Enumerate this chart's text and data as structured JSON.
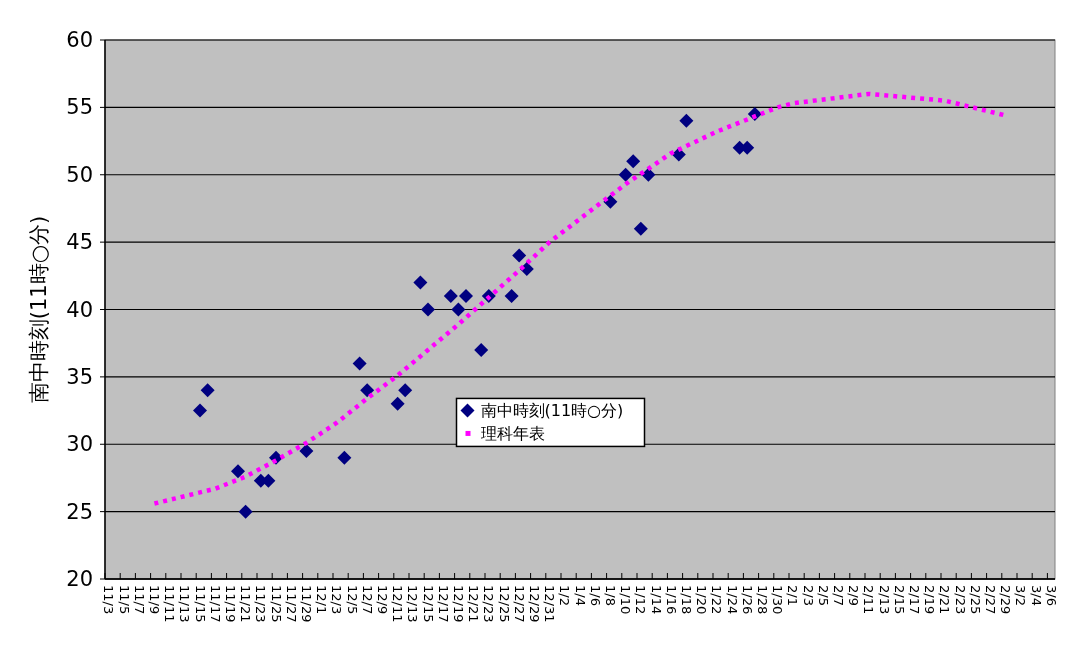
{
  "chart_data": {
    "type": "scatter",
    "ylabel": "南中時刻(11時○分)",
    "ylim": [
      20,
      60
    ],
    "yticks": [
      20,
      25,
      30,
      35,
      40,
      45,
      50,
      55,
      60
    ],
    "categories": [
      "11/3",
      null,
      "11/5",
      null,
      "11/7",
      null,
      "11/9",
      null,
      "11/11",
      null,
      "11/13",
      null,
      "11/15",
      null,
      "11/17",
      null,
      "11/19",
      null,
      "11/21",
      null,
      "11/23",
      null,
      "11/25",
      null,
      "11/27",
      null,
      "11/29",
      null,
      "12/1",
      null,
      "12/3",
      null,
      "12/5",
      null,
      "12/7",
      null,
      "12/9",
      null,
      "12/11",
      null,
      "12/13",
      null,
      "12/15",
      null,
      "12/17",
      null,
      "12/19",
      null,
      "12/21",
      null,
      "12/23",
      null,
      "12/25",
      null,
      "12/27",
      null,
      "12/29",
      null,
      "12/31",
      null,
      "1/2",
      null,
      "1/4",
      null,
      "1/6",
      null,
      "1/8",
      null,
      "1/10",
      null,
      "1/12",
      null,
      "1/14",
      null,
      "1/16",
      null,
      "1/18",
      null,
      "1/20",
      null,
      "1/22",
      null,
      "1/24",
      null,
      "1/26",
      null,
      "1/28",
      null,
      "1/30",
      null,
      "2/1",
      null,
      "2/3",
      null,
      "2/5",
      null,
      "2/7",
      null,
      "2/9",
      null,
      "2/11",
      null,
      "2/13",
      null,
      "2/15",
      null,
      "2/17",
      null,
      "2/19",
      null,
      "2/21",
      null,
      "2/23",
      null,
      "2/25",
      null,
      "2/27",
      null,
      "2/29",
      null,
      "3/2",
      null,
      "3/4",
      null,
      "3/6"
    ],
    "grid": "y",
    "legend": "center",
    "series": [
      {
        "name": "南中時刻(11時○分)",
        "color": "#000080",
        "marker": "diamond",
        "values": [
          null,
          null,
          null,
          null,
          null,
          null,
          null,
          null,
          null,
          null,
          null,
          null,
          32.5,
          34,
          null,
          null,
          null,
          28,
          25,
          null,
          27.3,
          27.3,
          29,
          null,
          null,
          null,
          29.5,
          null,
          null,
          null,
          null,
          29,
          null,
          36,
          34,
          null,
          null,
          null,
          33,
          34,
          null,
          42,
          40,
          null,
          null,
          41,
          40,
          41,
          null,
          37,
          41,
          null,
          null,
          41,
          44,
          43,
          null,
          null,
          null,
          null,
          null,
          null,
          null,
          null,
          null,
          null,
          48,
          null,
          50,
          51,
          46,
          50,
          null,
          null,
          null,
          51.5,
          54,
          null,
          null,
          null,
          null,
          null,
          null,
          52,
          52,
          54.5,
          null,
          null,
          null,
          null,
          null,
          null,
          null,
          null,
          null,
          null,
          null,
          null,
          null,
          null,
          null,
          null,
          null,
          null,
          null,
          null,
          null,
          null,
          null,
          null,
          null,
          null,
          null,
          null,
          null,
          null,
          null,
          null,
          null,
          null,
          null,
          null,
          null,
          null,
          null
        ]
      },
      {
        "name": "理科年表",
        "type": "line",
        "line_style": "dotted",
        "color": "#ff00ff",
        "x": [
          "11/9",
          "11/17",
          "11/21",
          "11/25",
          "11/29",
          "12/3",
          "12/7",
          "12/11",
          "12/15",
          "12/19",
          "12/23",
          "12/27",
          "12/31",
          "1/6",
          "1/10",
          "1/16",
          "1/22",
          "1/30",
          "2/1",
          "2/11",
          "2/21",
          "2/29"
        ],
        "values": [
          25.6,
          26.7,
          27.6,
          28.8,
          30.1,
          31.6,
          33.4,
          35.1,
          37,
          38.9,
          40.9,
          42.9,
          45,
          47.6,
          49.3,
          51.6,
          53.2,
          55,
          55.3,
          56,
          55.5,
          54.4
        ]
      }
    ]
  }
}
